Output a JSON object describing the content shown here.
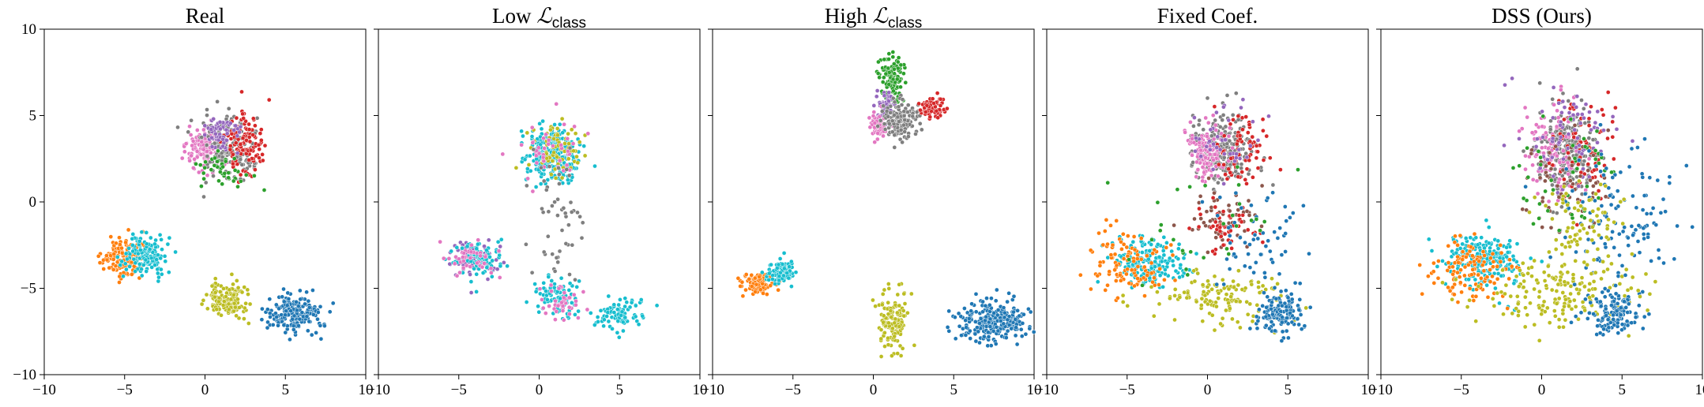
{
  "figure": {
    "bg": "#ffffff"
  },
  "palette": [
    "#1f77b4",
    "#ff7f0e",
    "#2ca02c",
    "#d62728",
    "#9467bd",
    "#8c564b",
    "#e377c2",
    "#7f7f7f",
    "#bcbd22",
    "#17becf"
  ],
  "chart_data": [
    {
      "type": "scatter",
      "title": "Real",
      "xlim": [
        -10,
        10
      ],
      "ylim": [
        -10,
        10
      ],
      "xticks": [
        -10,
        -5,
        0,
        5,
        10
      ],
      "yticks": [
        -10,
        -5,
        0,
        5,
        10
      ],
      "ytick_labels": true,
      "clusters": [
        {
          "c": 6,
          "cx": 0,
          "cy": 3,
          "sx": 0.6,
          "sy": 0.7,
          "n": 140
        },
        {
          "c": 7,
          "cx": 1.5,
          "cy": 3,
          "sx": 0.8,
          "sy": 0.9,
          "n": 180
        },
        {
          "c": 3,
          "cx": 2.5,
          "cy": 3.4,
          "sx": 0.6,
          "sy": 0.9,
          "n": 120
        },
        {
          "c": 4,
          "cx": 1,
          "cy": 4,
          "sx": 0.6,
          "sy": 0.5,
          "n": 60
        },
        {
          "c": 2,
          "cx": 1,
          "cy": 1.8,
          "sx": 1,
          "sy": 0.6,
          "n": 40
        },
        {
          "c": 1,
          "cx": -5.2,
          "cy": -3.2,
          "sx": 0.6,
          "sy": 0.5,
          "n": 150
        },
        {
          "c": 9,
          "cx": -3.7,
          "cy": -3.1,
          "sx": 0.6,
          "sy": 0.6,
          "n": 150
        },
        {
          "c": 8,
          "cx": 1.5,
          "cy": -5.6,
          "sx": 0.6,
          "sy": 0.5,
          "n": 150
        },
        {
          "c": 0,
          "cx": 5.5,
          "cy": -6.4,
          "sx": 0.8,
          "sy": 0.6,
          "n": 200
        }
      ]
    },
    {
      "type": "scatter",
      "title": "Low ",
      "title_math": "ℒ",
      "title_sub": "class",
      "xlim": [
        -10,
        10
      ],
      "ylim": [
        -10,
        10
      ],
      "xticks": [
        -10,
        -5,
        0,
        5,
        10
      ],
      "yticks": [
        -10,
        -5,
        0,
        5,
        10
      ],
      "ytick_labels": false,
      "clusters": [
        {
          "c": 9,
          "cx": 0.8,
          "cy": 2.8,
          "sx": 0.8,
          "sy": 0.8,
          "n": 260
        },
        {
          "c": 8,
          "cx": 1.2,
          "cy": 3,
          "sx": 0.9,
          "sy": 0.9,
          "n": 70
        },
        {
          "c": 6,
          "cx": 0.5,
          "cy": 3,
          "sx": 0.9,
          "sy": 0.9,
          "n": 40
        },
        {
          "c": 4,
          "cx": -4,
          "cy": -3.2,
          "sx": 0.8,
          "sy": 0.5,
          "n": 90
        },
        {
          "c": 9,
          "cx": -3.6,
          "cy": -3.2,
          "sx": 0.8,
          "sy": 0.5,
          "n": 90
        },
        {
          "c": 6,
          "cx": -4,
          "cy": -3.2,
          "sx": 0.8,
          "sy": 0.5,
          "n": 40
        },
        {
          "c": 9,
          "cx": 1,
          "cy": -5.5,
          "sx": 0.6,
          "sy": 0.5,
          "n": 90
        },
        {
          "c": 6,
          "cx": 1.5,
          "cy": -5.8,
          "sx": 0.6,
          "sy": 0.5,
          "n": 40
        },
        {
          "c": 9,
          "cx": 5,
          "cy": -6.5,
          "sx": 0.7,
          "sy": 0.5,
          "n": 90
        },
        {
          "c": 7,
          "cx": 1.2,
          "cy": -1,
          "sx": 0.9,
          "sy": 1.8,
          "n": 50
        }
      ]
    },
    {
      "type": "scatter",
      "title": "High ",
      "title_math": "ℒ",
      "title_sub": "class",
      "xlim": [
        -10,
        10
      ],
      "ylim": [
        -10,
        10
      ],
      "xticks": [
        -10,
        -5,
        0,
        5,
        10
      ],
      "yticks": [
        -10,
        -5,
        0,
        5,
        10
      ],
      "ytick_labels": false,
      "clusters": [
        {
          "c": 2,
          "cx": 1.2,
          "cy": 7.2,
          "sx": 0.4,
          "sy": 0.7,
          "n": 110
        },
        {
          "c": 4,
          "cx": 0.8,
          "cy": 5.5,
          "sx": 0.3,
          "sy": 0.4,
          "n": 50
        },
        {
          "c": 6,
          "cx": 0.3,
          "cy": 4.4,
          "sx": 0.3,
          "sy": 0.4,
          "n": 60
        },
        {
          "c": 7,
          "cx": 1.7,
          "cy": 4.7,
          "sx": 0.6,
          "sy": 0.5,
          "n": 150
        },
        {
          "c": 3,
          "cx": 3.7,
          "cy": 5.5,
          "sx": 0.4,
          "sy": 0.3,
          "n": 80
        },
        {
          "c": 1,
          "cx": -7.3,
          "cy": -4.7,
          "sx": 0.5,
          "sy": 0.3,
          "n": 100
        },
        {
          "c": 9,
          "cx": -5.7,
          "cy": -4.1,
          "sx": 0.5,
          "sy": 0.3,
          "n": 100
        },
        {
          "c": 8,
          "cx": 1.2,
          "cy": -6.8,
          "sx": 0.4,
          "sy": 0.8,
          "n": 150
        },
        {
          "c": 0,
          "cx": 7.5,
          "cy": -7,
          "sx": 1.2,
          "sy": 0.6,
          "n": 260
        }
      ]
    },
    {
      "type": "scatter",
      "title": "Fixed Coef.",
      "xlim": [
        -10,
        10
      ],
      "ylim": [
        -10,
        10
      ],
      "xticks": [
        -10,
        -5,
        0,
        5,
        10
      ],
      "yticks": [
        -10,
        -5,
        0,
        5,
        10
      ],
      "ytick_labels": false,
      "clusters": [
        {
          "c": 7,
          "cx": 1,
          "cy": 3,
          "sx": 0.9,
          "sy": 1.1,
          "n": 220
        },
        {
          "c": 6,
          "cx": 0,
          "cy": 3,
          "sx": 0.6,
          "sy": 0.8,
          "n": 120
        },
        {
          "c": 3,
          "cx": 2,
          "cy": 3.2,
          "sx": 0.9,
          "sy": 1.1,
          "n": 70
        },
        {
          "c": 4,
          "cx": 1,
          "cy": 3.5,
          "sx": 1,
          "sy": 1,
          "n": 40
        },
        {
          "c": 5,
          "cx": 1,
          "cy": -1,
          "sx": 1,
          "sy": 0.8,
          "n": 60
        },
        {
          "c": 3,
          "cx": 1,
          "cy": -1.5,
          "sx": 1,
          "sy": 0.8,
          "n": 50
        },
        {
          "c": 9,
          "cx": -3.5,
          "cy": -3.5,
          "sx": 1.2,
          "sy": 0.7,
          "n": 180
        },
        {
          "c": 1,
          "cx": -5,
          "cy": -3.5,
          "sx": 1.2,
          "sy": 1,
          "n": 110
        },
        {
          "c": 8,
          "cx": 1,
          "cy": -5.5,
          "sx": 2,
          "sy": 0.8,
          "n": 130
        },
        {
          "c": 0,
          "cx": 4.5,
          "cy": -6.4,
          "sx": 0.8,
          "sy": 0.6,
          "n": 140
        },
        {
          "c": 0,
          "cx": 3,
          "cy": -2.5,
          "sx": 1.5,
          "sy": 1.5,
          "n": 60
        },
        {
          "c": 2,
          "cx": 0,
          "cy": -1,
          "sx": 2.5,
          "sy": 2,
          "n": 30
        }
      ]
    },
    {
      "type": "scatter",
      "title": "DSS (Ours)",
      "xlim": [
        -10,
        10
      ],
      "ylim": [
        -10,
        10
      ],
      "xticks": [
        -10,
        -5,
        0,
        5,
        10
      ],
      "yticks": [
        -10,
        -5,
        0,
        5,
        10
      ],
      "ytick_labels": false,
      "clusters": [
        {
          "c": 7,
          "cx": 1.5,
          "cy": 3,
          "sx": 0.9,
          "sy": 1.3,
          "n": 240
        },
        {
          "c": 6,
          "cx": 0.5,
          "cy": 3,
          "sx": 0.8,
          "sy": 1.3,
          "n": 100
        },
        {
          "c": 3,
          "cx": 2.5,
          "cy": 3,
          "sx": 1,
          "sy": 1.5,
          "n": 80
        },
        {
          "c": 4,
          "cx": 1.5,
          "cy": 3.5,
          "sx": 1.4,
          "sy": 1.5,
          "n": 80
        },
        {
          "c": 5,
          "cx": 1.5,
          "cy": 1,
          "sx": 1.5,
          "sy": 1.5,
          "n": 60
        },
        {
          "c": 2,
          "cx": 1.5,
          "cy": 2,
          "sx": 1.8,
          "sy": 2,
          "n": 50
        },
        {
          "c": 0,
          "cx": 5,
          "cy": -1,
          "sx": 2,
          "sy": 2,
          "n": 120
        },
        {
          "c": 9,
          "cx": -3.5,
          "cy": -3.3,
          "sx": 1.3,
          "sy": 0.8,
          "n": 200
        },
        {
          "c": 1,
          "cx": -4.5,
          "cy": -3.8,
          "sx": 1.3,
          "sy": 1,
          "n": 120
        },
        {
          "c": 8,
          "cx": 1,
          "cy": -5.3,
          "sx": 2.5,
          "sy": 1,
          "n": 170
        },
        {
          "c": 0,
          "cx": 4.5,
          "cy": -6.4,
          "sx": 0.8,
          "sy": 0.6,
          "n": 140
        },
        {
          "c": 8,
          "cx": 2.5,
          "cy": -1.5,
          "sx": 1.5,
          "sy": 1.5,
          "n": 80
        }
      ]
    }
  ]
}
